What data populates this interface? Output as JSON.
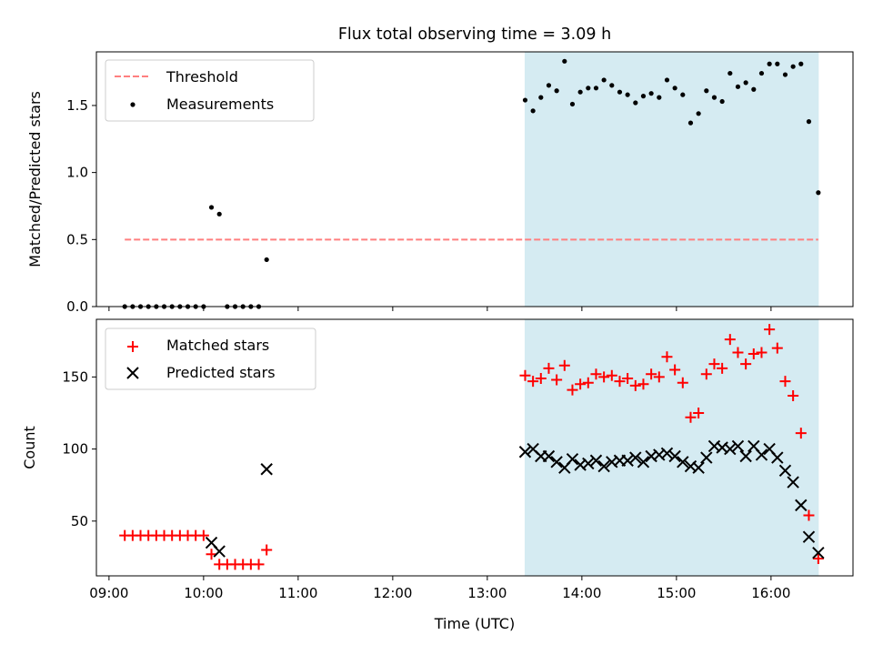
{
  "title": "Flux total observing time = 3.09 h",
  "xlabel": "Time (UTC)",
  "x_ticks": [
    "09:00",
    "10:00",
    "11:00",
    "12:00",
    "13:00",
    "14:00",
    "15:00",
    "16:00"
  ],
  "observing_window": {
    "start": "13:24",
    "end": "16:30",
    "color": "#add8e6"
  },
  "colors": {
    "threshold": "#ff7f7f",
    "measurements": "#000000",
    "matched": "#ff0000",
    "predicted": "#000000"
  },
  "chart_data": [
    {
      "type": "scatter",
      "ylabel": "Matched/Predicted stars",
      "ylim": [
        0,
        1.9
      ],
      "y_ticks": [
        "0.0",
        "0.5",
        "1.0",
        "1.5"
      ],
      "xlim": [
        "08:52",
        "16:52"
      ],
      "legend": {
        "position": "top-left",
        "threshold_label": "Threshold",
        "measurements_label": "Measurements"
      },
      "threshold": {
        "name": "Threshold",
        "x": [
          "09:10",
          "16:30"
        ],
        "y": 0.5
      },
      "series": [
        {
          "name": "Measurements",
          "x": [
            "09:10",
            "09:15",
            "09:20",
            "09:25",
            "09:30",
            "09:35",
            "09:40",
            "09:45",
            "09:50",
            "09:55",
            "10:00",
            "10:05",
            "10:10",
            "10:15",
            "10:20",
            "10:25",
            "10:30",
            "10:35",
            "10:40",
            "13:24",
            "13:29",
            "13:34",
            "13:39",
            "13:44",
            "13:49",
            "13:54",
            "13:59",
            "14:04",
            "14:09",
            "14:14",
            "14:19",
            "14:24",
            "14:29",
            "14:34",
            "14:39",
            "14:44",
            "14:49",
            "14:54",
            "14:59",
            "15:04",
            "15:09",
            "15:14",
            "15:19",
            "15:24",
            "15:29",
            "15:34",
            "15:39",
            "15:44",
            "15:49",
            "15:54",
            "15:59",
            "16:04",
            "16:09",
            "16:14",
            "16:19",
            "16:24",
            "16:30"
          ],
          "y": [
            0,
            0,
            0,
            0,
            0,
            0,
            0,
            0,
            0,
            0,
            0,
            0.74,
            0.69,
            0,
            0,
            0,
            0,
            0,
            0.35,
            1.54,
            1.46,
            1.56,
            1.65,
            1.61,
            1.83,
            1.51,
            1.6,
            1.63,
            1.63,
            1.69,
            1.65,
            1.6,
            1.58,
            1.52,
            1.57,
            1.59,
            1.56,
            1.69,
            1.63,
            1.58,
            1.37,
            1.44,
            1.61,
            1.56,
            1.53,
            1.74,
            1.64,
            1.67,
            1.62,
            1.74,
            1.81,
            1.81,
            1.73,
            1.79,
            1.81,
            1.38,
            0.85
          ]
        }
      ]
    },
    {
      "type": "scatter",
      "ylabel": "Count",
      "ylim": [
        12,
        190
      ],
      "y_ticks": [
        "50",
        "100",
        "150"
      ],
      "xlim": [
        "08:52",
        "16:52"
      ],
      "legend": {
        "position": "top-left",
        "matched_label": "Matched stars",
        "predicted_label": "Predicted stars"
      },
      "series": [
        {
          "name": "Matched stars",
          "x": [
            "09:10",
            "09:15",
            "09:20",
            "09:25",
            "09:30",
            "09:35",
            "09:40",
            "09:45",
            "09:50",
            "09:55",
            "10:00",
            "10:05",
            "10:10",
            "10:15",
            "10:20",
            "10:25",
            "10:30",
            "10:35",
            "10:40",
            "13:24",
            "13:29",
            "13:34",
            "13:39",
            "13:44",
            "13:49",
            "13:54",
            "13:59",
            "14:04",
            "14:09",
            "14:14",
            "14:19",
            "14:24",
            "14:29",
            "14:34",
            "14:39",
            "14:44",
            "14:49",
            "14:54",
            "14:59",
            "15:04",
            "15:09",
            "15:14",
            "15:19",
            "15:24",
            "15:29",
            "15:34",
            "15:39",
            "15:44",
            "15:49",
            "15:54",
            "15:59",
            "16:04",
            "16:09",
            "16:14",
            "16:19",
            "16:24",
            "16:30"
          ],
          "y": [
            40,
            40,
            40,
            40,
            40,
            40,
            40,
            40,
            40,
            40,
            40,
            27,
            20,
            20,
            20,
            20,
            20,
            20,
            30,
            151,
            147,
            149,
            156,
            148,
            158,
            141,
            145,
            146,
            152,
            150,
            151,
            147,
            149,
            144,
            145,
            152,
            150,
            164,
            155,
            146,
            122,
            125,
            152,
            159,
            156,
            176,
            167,
            159,
            166,
            167,
            183,
            170,
            147,
            137,
            111,
            54,
            24
          ]
        },
        {
          "name": "Predicted stars",
          "x": [
            "10:05",
            "10:10",
            "10:40",
            "13:24",
            "13:29",
            "13:34",
            "13:39",
            "13:44",
            "13:49",
            "13:54",
            "13:59",
            "14:04",
            "14:09",
            "14:14",
            "14:19",
            "14:24",
            "14:29",
            "14:34",
            "14:39",
            "14:44",
            "14:49",
            "14:54",
            "14:59",
            "15:04",
            "15:09",
            "15:14",
            "15:19",
            "15:24",
            "15:29",
            "15:34",
            "15:39",
            "15:44",
            "15:49",
            "15:54",
            "15:59",
            "16:04",
            "16:09",
            "16:14",
            "16:19",
            "16:24",
            "16:30"
          ],
          "y": [
            35,
            29,
            86,
            98,
            100,
            95,
            95,
            91,
            87,
            93,
            89,
            90,
            92,
            88,
            91,
            92,
            92,
            94,
            91,
            95,
            96,
            97,
            95,
            91,
            88,
            87,
            94,
            102,
            101,
            100,
            102,
            95,
            102,
            96,
            100,
            94,
            85,
            77,
            61,
            39,
            28
          ]
        }
      ]
    }
  ]
}
